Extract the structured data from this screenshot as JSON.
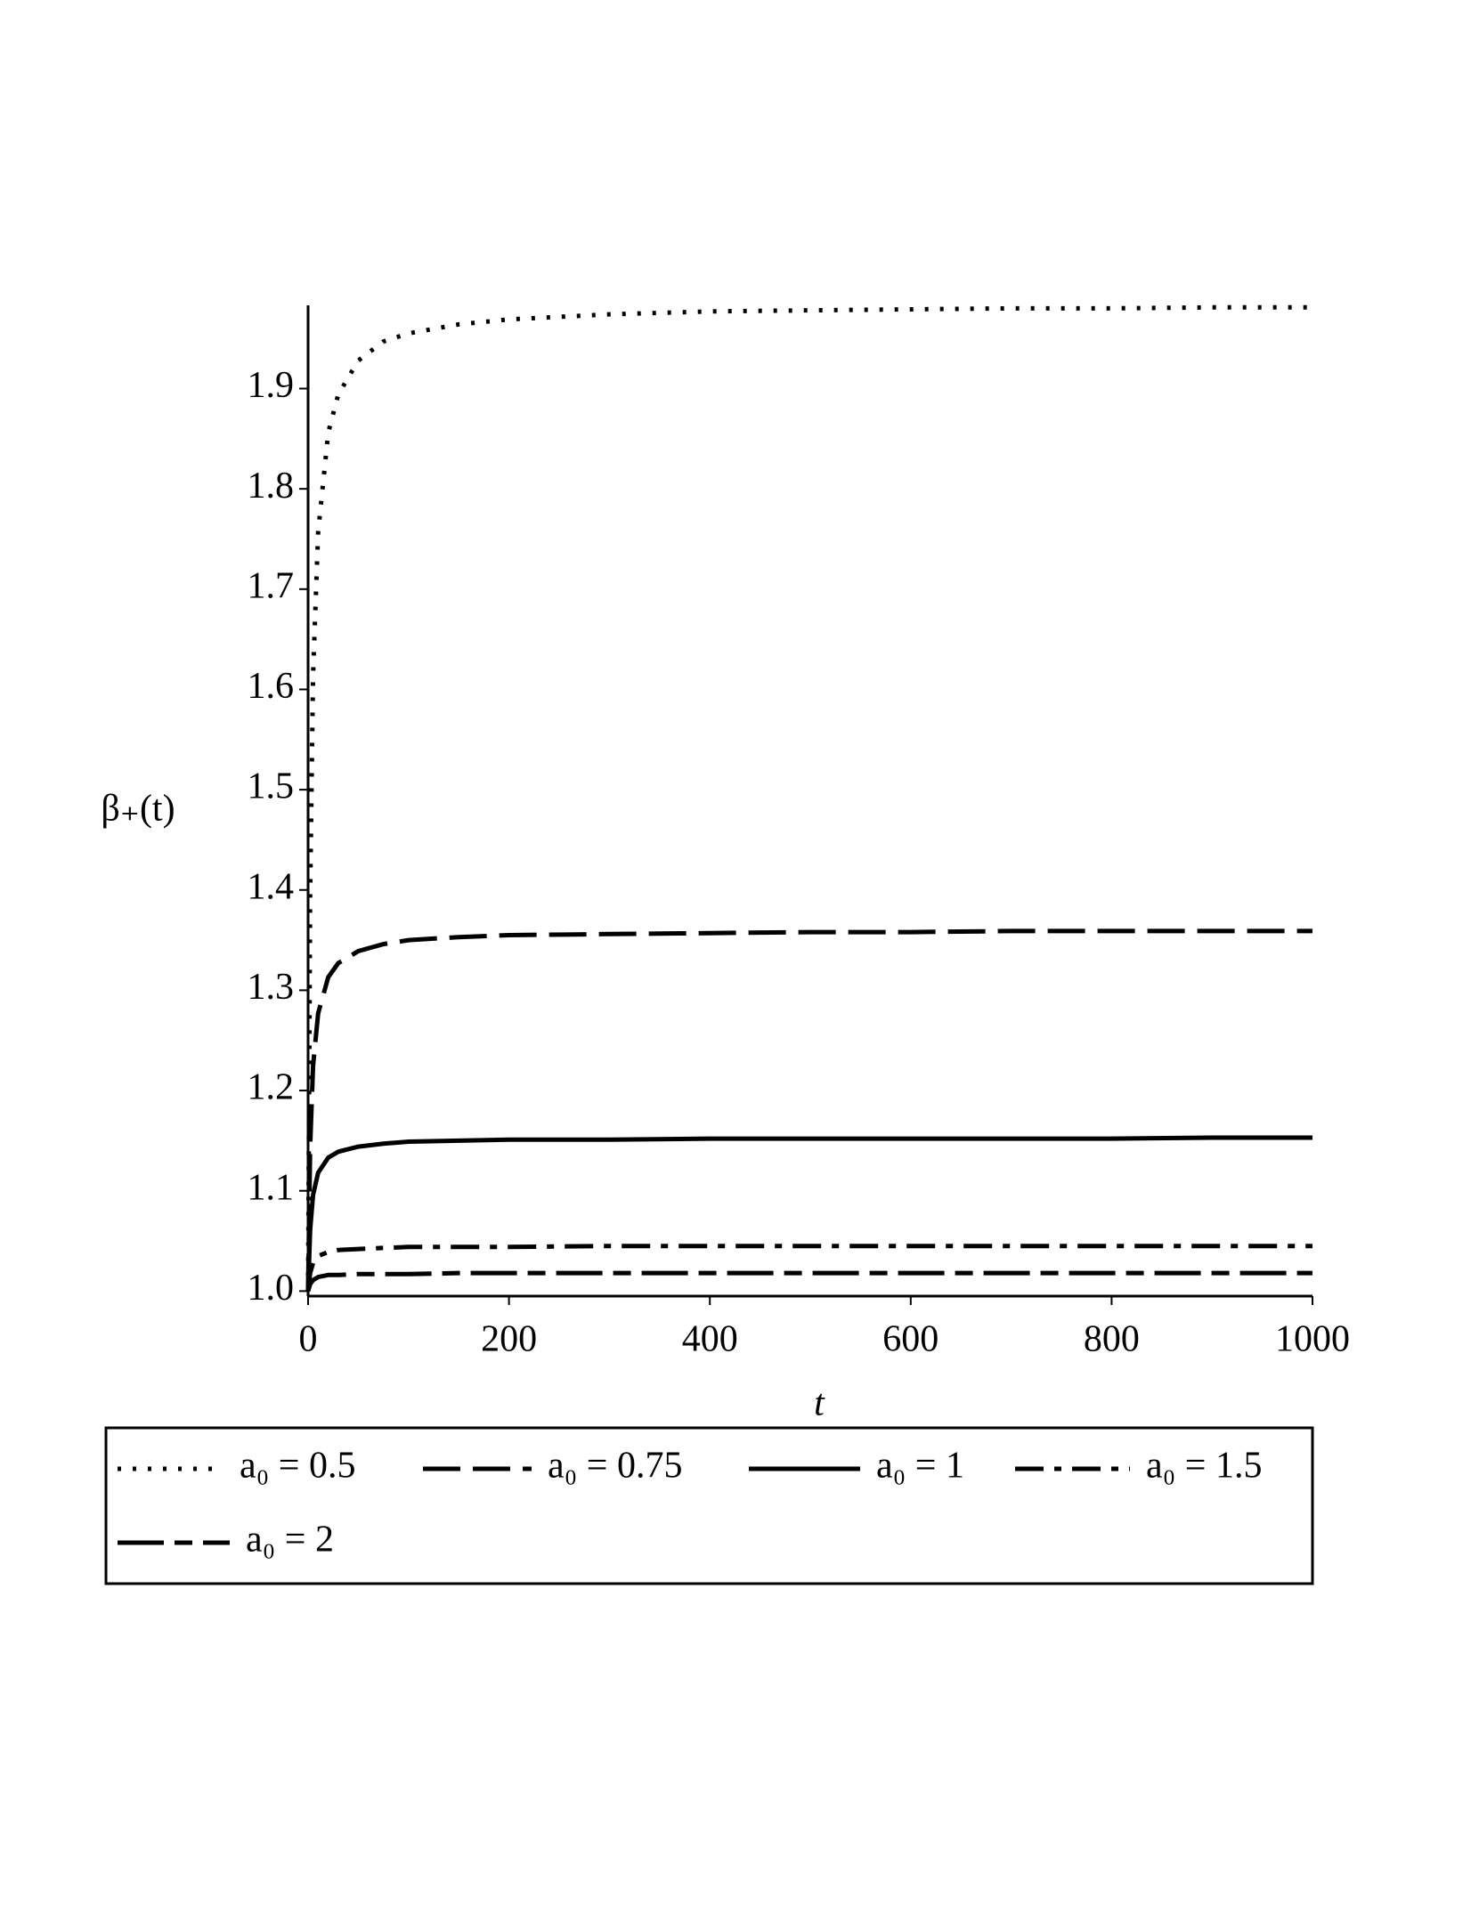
{
  "chart_data": {
    "type": "line",
    "x_label": "t",
    "y_label": "β₊(t)",
    "x": [
      0,
      2,
      5,
      10,
      20,
      30,
      50,
      75,
      100,
      150,
      200,
      300,
      400,
      500,
      600,
      700,
      800,
      900,
      1000
    ],
    "series": [
      {
        "name": "a₀ = 0.5",
        "color": "#000000",
        "dash": "dotted",
        "values": [
          1,
          1.394,
          1.615,
          1.757,
          1.856,
          1.894,
          1.928,
          1.947,
          1.955,
          1.964,
          1.969,
          1.974,
          1.977,
          1.978,
          1.979,
          1.98,
          1.98,
          1.981,
          1.981
        ]
      },
      {
        "name": "a₀ = 0.75",
        "color": "#000000",
        "dash": "long-dash",
        "values": [
          1,
          1.144,
          1.225,
          1.277,
          1.313,
          1.327,
          1.339,
          1.346,
          1.35,
          1.353,
          1.355,
          1.356,
          1.357,
          1.358,
          1.358,
          1.359,
          1.359,
          1.359,
          1.359
        ]
      },
      {
        "name": "a₀ = 1",
        "color": "#000000",
        "dash": "solid",
        "values": [
          1,
          1.061,
          1.096,
          1.118,
          1.133,
          1.139,
          1.144,
          1.147,
          1.149,
          1.15,
          1.151,
          1.151,
          1.152,
          1.152,
          1.152,
          1.152,
          1.152,
          1.153,
          1.153
        ]
      },
      {
        "name": "a₀ = 1.5",
        "color": "#000000",
        "dash": "dash-dot",
        "values": [
          1,
          1.018,
          1.028,
          1.035,
          1.039,
          1.041,
          1.042,
          1.043,
          1.044,
          1.044,
          1.044,
          1.045,
          1.045,
          1.045,
          1.045,
          1.045,
          1.045,
          1.045,
          1.045
        ]
      },
      {
        "name": "a₀ = 2",
        "color": "#000000",
        "dash": "long-short-dash",
        "values": [
          1,
          1.007,
          1.011,
          1.014,
          1.016,
          1.016,
          1.017,
          1.017,
          1.017,
          1.018,
          1.018,
          1.018,
          1.018,
          1.018,
          1.018,
          1.018,
          1.018,
          1.018,
          1.018
        ]
      }
    ],
    "xlim": [
      0,
      1000
    ],
    "xticks": [
      0,
      200,
      400,
      600,
      800,
      1000
    ],
    "ylim": [
      0.995,
      1.983
    ],
    "yticks": [
      {
        "value": 1.0,
        "label": "1.0"
      },
      1.1,
      1.2,
      1.3,
      1.4,
      1.5,
      1.6,
      1.7,
      1.8,
      1.9
    ],
    "legend": "bottom"
  }
}
